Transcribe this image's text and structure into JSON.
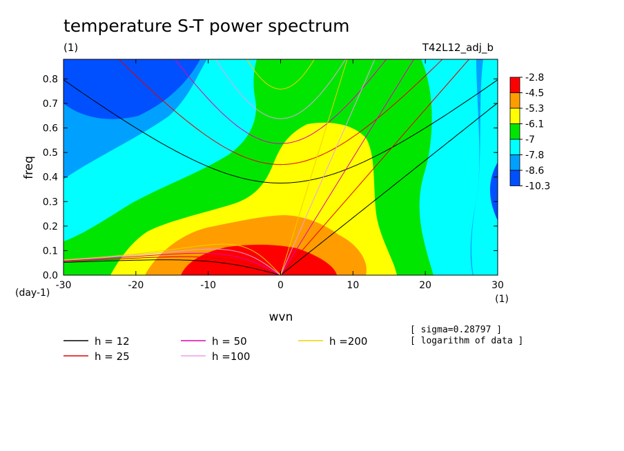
{
  "chart_data": {
    "type": "heatmap",
    "title": "temperature S-T power spectrum",
    "subtitle": "(1)",
    "run_label": "T42L12_adj_b",
    "xlabel": "wvn",
    "ylabel": "freq",
    "x_unit": "(1)",
    "y_unit": "(day-1)",
    "xlim": [
      -30,
      30
    ],
    "ylim": [
      0,
      0.88
    ],
    "x_ticks": [
      -30,
      -20,
      -10,
      0,
      10,
      20,
      30
    ],
    "y_ticks": [
      0.0,
      0.1,
      0.2,
      0.3,
      0.4,
      0.5,
      0.6,
      0.7,
      0.8
    ],
    "colorbar": {
      "levels": [
        "-2.8",
        "-4.5",
        "-5.3",
        "-6.1",
        "-7",
        "-7.8",
        "-8.6",
        "-10.3"
      ],
      "colors": [
        "#ff0000",
        "#ff9c00",
        "#ffff00",
        "#00e600",
        "#00ffff",
        "#00a0ff",
        "#0050ff"
      ]
    },
    "dispersion_curves": [
      {
        "label": "h = 12",
        "h": 12,
        "color": "#000000"
      },
      {
        "label": "h = 25",
        "h": 25,
        "color": "#e00000"
      },
      {
        "label": "h = 50",
        "h": 50,
        "color": "#e000b0"
      },
      {
        "label": "h =100",
        "h": 100,
        "color": "#e8a0e8"
      },
      {
        "label": "h =200",
        "h": 200,
        "color": "#f0d000"
      }
    ],
    "notes": [
      "[ sigma=0.28797 ]",
      "[ logarithm of data ]"
    ]
  }
}
